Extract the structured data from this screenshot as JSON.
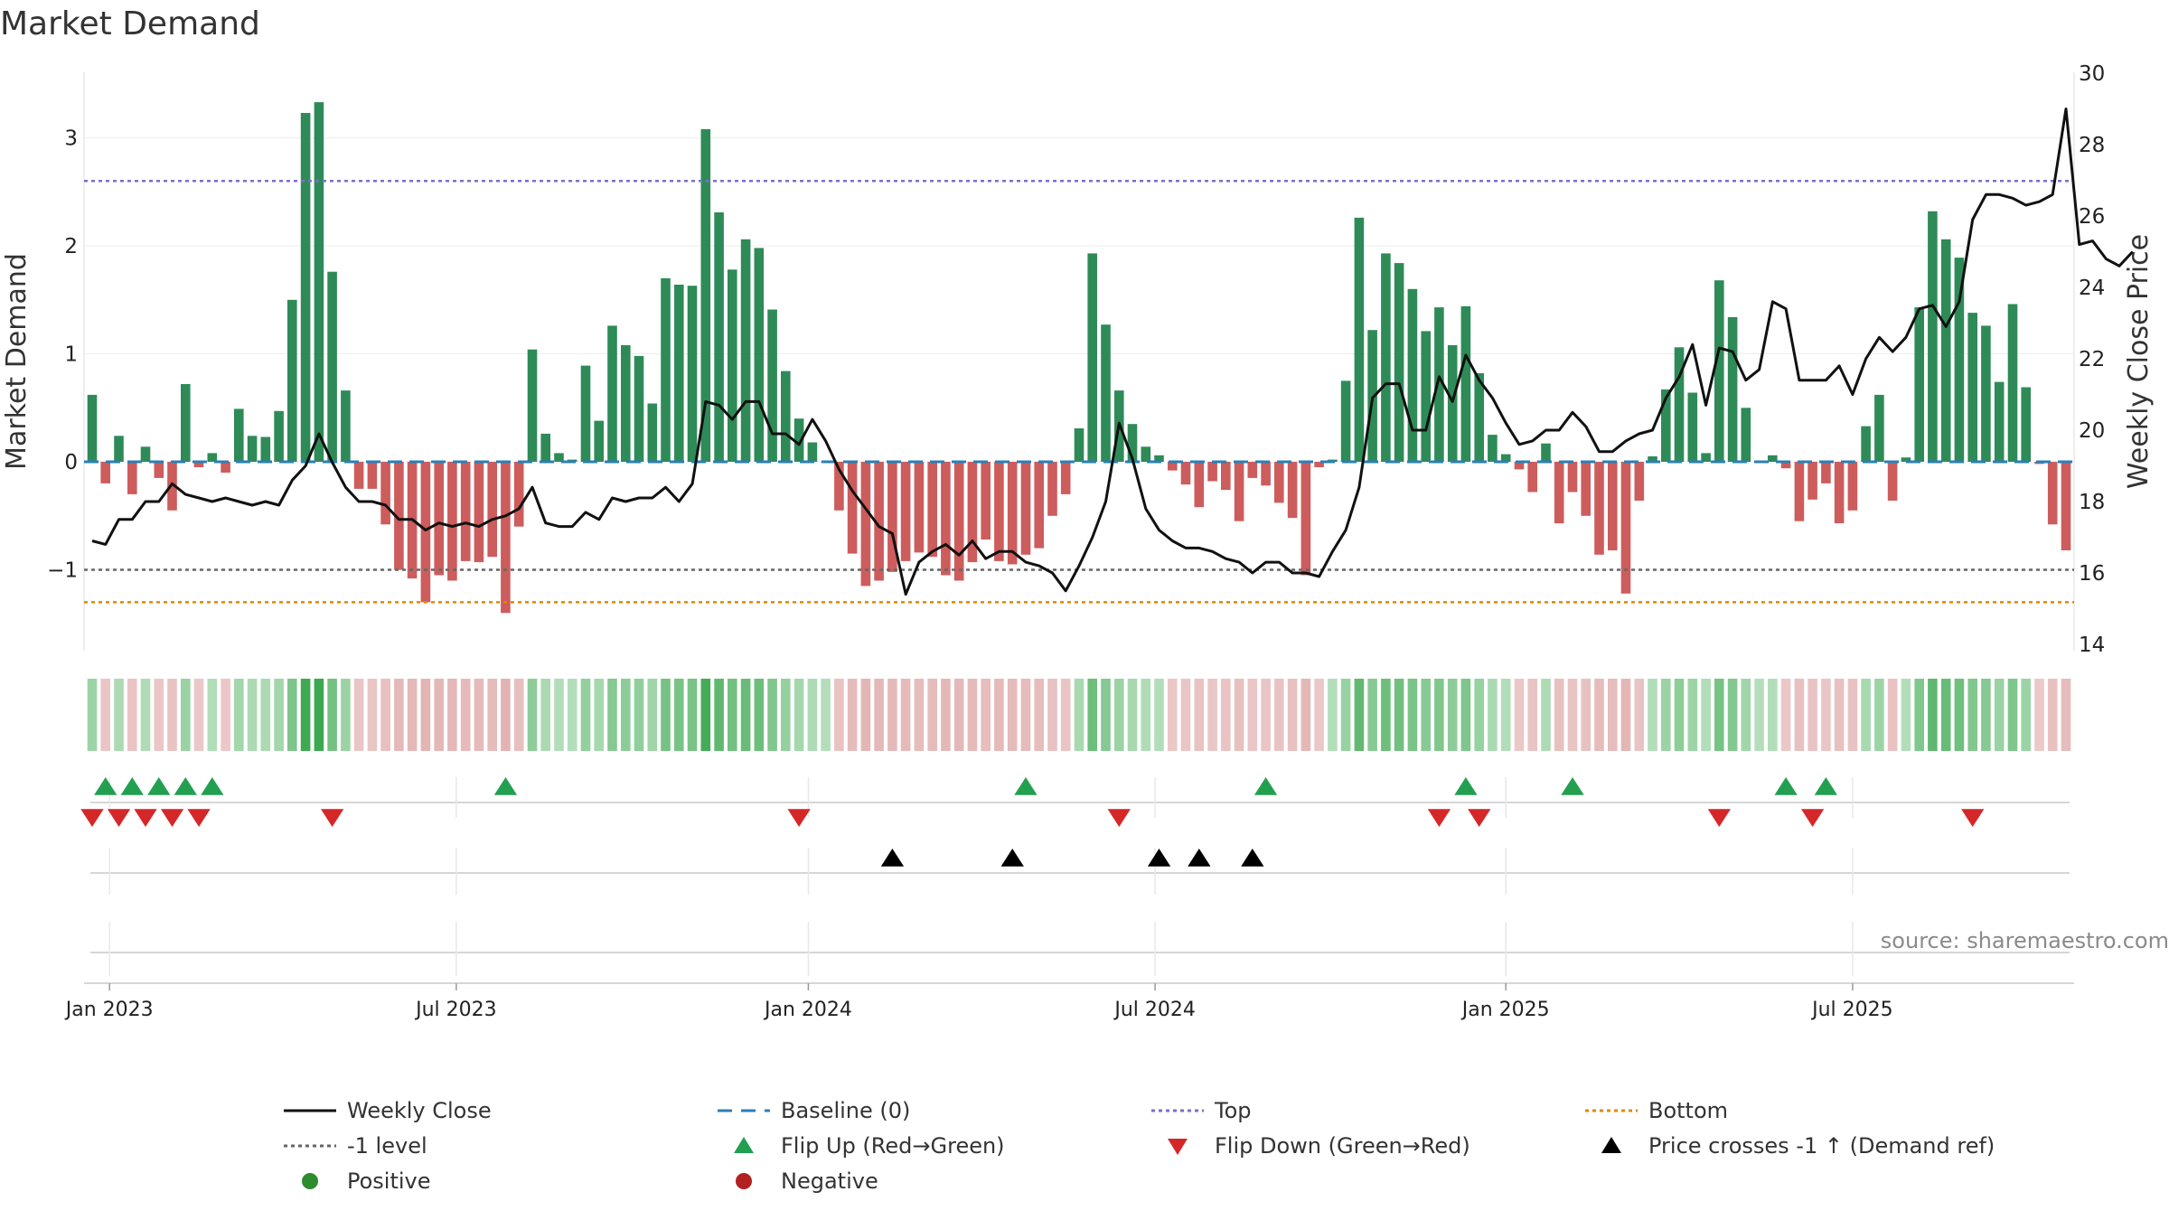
{
  "chart_data": {
    "type": "bar",
    "title": "Market Demand",
    "ylabel": "Market Demand",
    "y2label": "Weekly Close Price",
    "ylim": [
      -1.75,
      3.6
    ],
    "y2lim": [
      14,
      30
    ],
    "yticks": [
      -1,
      0,
      1,
      2,
      3
    ],
    "ytick_labels": [
      "−1",
      "0",
      "1",
      "2",
      "3"
    ],
    "y2ticks": [
      14,
      16,
      18,
      20,
      22,
      24,
      26,
      28,
      30
    ],
    "reference_lines": {
      "top": 2.6,
      "bottom": -1.3,
      "minus_one": -1,
      "baseline": 0
    },
    "x_start": "2022-12-23",
    "x_end": "2025-09-26",
    "weeks": 144,
    "x_tick_labels": [
      {
        "label": "Jan 2023",
        "week": 1.3
      },
      {
        "label": "Jul 2023",
        "week": 27.3
      },
      {
        "label": "Jan 2024",
        "week": 53.7
      },
      {
        "label": "Jul 2024",
        "week": 79.7
      },
      {
        "label": "Jan 2025",
        "week": 106.0
      },
      {
        "label": "Jul 2025",
        "week": 132.0
      }
    ],
    "demand": [
      0.62,
      -0.2,
      0.24,
      -0.3,
      0.14,
      -0.15,
      -0.45,
      0.72,
      -0.05,
      0.08,
      -0.1,
      0.49,
      0.24,
      0.23,
      0.47,
      1.5,
      3.23,
      3.33,
      1.76,
      0.66,
      -0.25,
      -0.25,
      -0.58,
      -1.0,
      -1.08,
      -1.3,
      -1.05,
      -1.1,
      -0.92,
      -0.93,
      -0.88,
      -1.4,
      -0.6,
      1.04,
      0.26,
      0.08,
      0.02,
      0.89,
      0.38,
      1.26,
      1.08,
      0.98,
      0.54,
      1.7,
      1.64,
      1.63,
      3.08,
      2.31,
      1.78,
      2.06,
      1.98,
      1.41,
      0.84,
      0.4,
      0.18,
      0.0,
      -0.45,
      -0.85,
      -1.15,
      -1.1,
      -1.02,
      -0.92,
      -0.84,
      -0.88,
      -1.05,
      -1.1,
      -0.93,
      -0.72,
      -0.92,
      -0.95,
      -0.86,
      -0.8,
      -0.5,
      -0.3,
      0.31,
      1.93,
      1.27,
      0.66,
      0.35,
      0.14,
      0.06,
      -0.08,
      -0.21,
      -0.42,
      -0.18,
      -0.26,
      -0.55,
      -0.15,
      -0.22,
      -0.38,
      -0.52,
      -1.05,
      -0.05,
      0.02,
      0.75,
      2.26,
      1.22,
      1.93,
      1.84,
      1.6,
      1.21,
      1.43,
      1.08,
      1.44,
      0.82,
      0.25,
      0.07,
      -0.07,
      -0.28,
      0.17,
      -0.57,
      -0.28,
      -0.5,
      -0.86,
      -0.82,
      -1.22,
      -0.36,
      0.05,
      0.67,
      1.06,
      0.64,
      0.08,
      1.68,
      1.34,
      0.5,
      0.0,
      0.06,
      -0.06,
      -0.55,
      -0.35,
      -0.2,
      -0.57,
      -0.45,
      0.33,
      0.62,
      -0.36,
      0.04,
      1.43,
      2.32,
      2.06,
      1.89,
      1.38,
      1.26,
      0.74,
      1.46,
      0.69,
      -0.02,
      -0.58,
      -0.82
    ],
    "weekly_close": [
      16.9,
      16.8,
      17.5,
      17.5,
      18.0,
      18.0,
      18.5,
      18.2,
      18.1,
      18.0,
      18.1,
      18.0,
      17.9,
      18.0,
      17.9,
      18.6,
      19.0,
      19.9,
      19.1,
      18.4,
      18.0,
      18.0,
      17.9,
      17.5,
      17.5,
      17.2,
      17.4,
      17.3,
      17.4,
      17.3,
      17.5,
      17.6,
      17.8,
      18.4,
      17.4,
      17.3,
      17.3,
      17.7,
      17.5,
      18.1,
      18.0,
      18.1,
      18.1,
      18.4,
      18.0,
      18.5,
      20.8,
      20.7,
      20.3,
      20.8,
      20.8,
      19.9,
      19.9,
      19.6,
      20.3,
      19.7,
      18.9,
      18.3,
      17.8,
      17.3,
      17.1,
      15.4,
      16.3,
      16.6,
      16.8,
      16.5,
      16.9,
      16.4,
      16.6,
      16.6,
      16.3,
      16.2,
      16.0,
      15.5,
      16.2,
      17.0,
      18.0,
      20.2,
      19.2,
      17.8,
      17.2,
      16.9,
      16.7,
      16.7,
      16.6,
      16.4,
      16.3,
      16.0,
      16.3,
      16.3,
      16.0,
      16.0,
      15.9,
      16.6,
      17.2,
      18.4,
      20.9,
      21.3,
      21.3,
      20.0,
      20.0,
      21.5,
      20.8,
      22.1,
      21.4,
      20.9,
      20.2,
      19.6,
      19.7,
      20.0,
      20.0,
      20.5,
      20.1,
      19.4,
      19.4,
      19.7,
      19.9,
      20.0,
      20.9,
      21.5,
      22.4,
      20.7,
      22.3,
      22.2,
      21.4,
      21.7,
      23.6,
      23.4,
      21.4,
      21.4,
      21.4,
      21.8,
      21.0,
      22.0,
      22.6,
      22.2,
      22.6,
      23.4,
      23.5,
      22.9,
      23.6,
      25.9,
      26.6,
      26.6,
      26.5,
      26.3,
      26.4,
      26.6,
      29.0,
      25.2,
      25.3,
      24.8,
      24.6,
      25.0
    ],
    "flip_up_weeks": [
      1,
      3,
      5,
      7,
      9,
      31,
      70,
      88,
      103,
      111,
      127,
      130
    ],
    "flip_down_weeks": [
      0,
      2,
      4,
      6,
      8,
      18,
      53,
      77,
      101,
      104,
      122,
      129,
      141
    ],
    "price_cross_weeks": [
      60,
      69,
      80,
      83,
      87
    ],
    "legend": [
      {
        "label": "Weekly Close",
        "kind": "line",
        "color": "#111111"
      },
      {
        "label": "-1 level",
        "kind": "dotline",
        "color": "#666666"
      },
      {
        "label": "Positive",
        "kind": "circle",
        "color": "#2e8b2e"
      },
      {
        "label": "Baseline (0)",
        "kind": "dashline",
        "color": "#2a7fb8"
      },
      {
        "label": "Flip Up (Red→Green)",
        "kind": "tri-up",
        "color": "#22a050"
      },
      {
        "label": "Negative",
        "kind": "circle",
        "color": "#b22222"
      },
      {
        "label": "Top",
        "kind": "dotline",
        "color": "#7b6fc8"
      },
      {
        "label": "Flip Down (Green→Red)",
        "kind": "tri-down",
        "color": "#d62728"
      },
      {
        "label": "Bottom",
        "kind": "dotline",
        "color": "#e08a00"
      },
      {
        "label": "Price crosses -1 ↑ (Demand ref)",
        "kind": "tri-up",
        "color": "#000000"
      }
    ],
    "source": "source: sharemaestro.com"
  },
  "colors": {
    "positive_bar": "#2e8b57",
    "negative_bar": "#cd5c5c",
    "top_line": "#7b6fc8",
    "bottom_line": "#e08a00",
    "minus_one_line": "#666666",
    "baseline": "#2a7fb8",
    "flip_up": "#22a050",
    "flip_down": "#d62728",
    "price_cross": "#000000",
    "close_line": "#111111"
  }
}
